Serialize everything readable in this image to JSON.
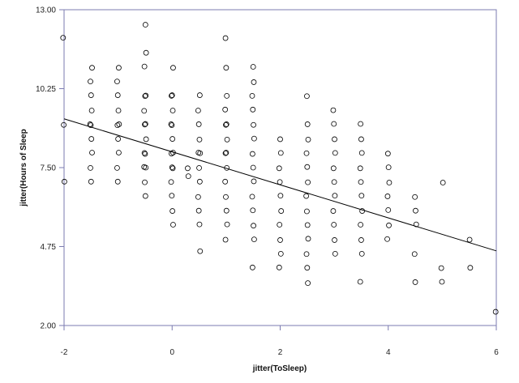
{
  "chart_data": {
    "type": "scatter",
    "title": "",
    "xlabel": "jitter(ToSleep)",
    "ylabel": "jitter(Hours of Sleep",
    "xlim": [
      -2,
      6
    ],
    "ylim": [
      2.0,
      13.0
    ],
    "x_ticks": [
      "-2",
      "0",
      "2",
      "4",
      "6"
    ],
    "y_ticks": [
      "2.00",
      "4.75",
      "7.50",
      "10.25",
      "13.00"
    ],
    "grid": false,
    "legend": "none",
    "colors": {
      "axis": "#7b7bb0",
      "marker": "#000000",
      "fit_line": "#000000"
    },
    "fit_line": {
      "x": [
        -2,
        6
      ],
      "y": [
        9.2,
        4.6
      ]
    },
    "points": [
      [
        -2.0,
        12.0
      ],
      [
        -2.0,
        9.0
      ],
      [
        -2.0,
        7.0
      ],
      [
        -1.5,
        11.0
      ],
      [
        -1.5,
        10.5
      ],
      [
        -1.5,
        10.0
      ],
      [
        -1.5,
        9.5
      ],
      [
        -1.5,
        9.0
      ],
      [
        -1.5,
        9.0
      ],
      [
        -1.5,
        8.5
      ],
      [
        -1.5,
        8.0
      ],
      [
        -1.5,
        7.5
      ],
      [
        -1.5,
        7.0
      ],
      [
        -1.0,
        11.0
      ],
      [
        -1.0,
        10.5
      ],
      [
        -1.0,
        10.0
      ],
      [
        -1.0,
        9.5
      ],
      [
        -1.0,
        9.0
      ],
      [
        -1.0,
        9.0
      ],
      [
        -1.0,
        8.5
      ],
      [
        -1.0,
        8.0
      ],
      [
        -1.0,
        7.5
      ],
      [
        -1.0,
        7.0
      ],
      [
        -0.5,
        12.5
      ],
      [
        -0.5,
        11.5
      ],
      [
        -0.5,
        11.0
      ],
      [
        -0.5,
        10.0
      ],
      [
        -0.5,
        10.0
      ],
      [
        -0.5,
        9.5
      ],
      [
        -0.5,
        9.0
      ],
      [
        -0.5,
        9.0
      ],
      [
        -0.5,
        8.5
      ],
      [
        -0.5,
        8.0
      ],
      [
        -0.5,
        8.0
      ],
      [
        -0.5,
        7.5
      ],
      [
        -0.5,
        7.5
      ],
      [
        -0.5,
        7.0
      ],
      [
        -0.5,
        6.5
      ],
      [
        0.0,
        11.0
      ],
      [
        0.0,
        10.0
      ],
      [
        0.0,
        10.0
      ],
      [
        0.0,
        9.5
      ],
      [
        0.0,
        9.0
      ],
      [
        0.0,
        9.0
      ],
      [
        0.0,
        8.5
      ],
      [
        0.0,
        8.0
      ],
      [
        0.0,
        8.0
      ],
      [
        0.0,
        7.5
      ],
      [
        0.0,
        7.5
      ],
      [
        0.0,
        7.0
      ],
      [
        0.0,
        6.5
      ],
      [
        0.0,
        6.0
      ],
      [
        0.0,
        5.5
      ],
      [
        0.3,
        7.5
      ],
      [
        0.3,
        7.2
      ],
      [
        0.5,
        10.0
      ],
      [
        0.5,
        9.5
      ],
      [
        0.5,
        9.0
      ],
      [
        0.5,
        8.5
      ],
      [
        0.5,
        8.0
      ],
      [
        0.5,
        8.0
      ],
      [
        0.5,
        7.5
      ],
      [
        0.5,
        7.0
      ],
      [
        0.5,
        6.5
      ],
      [
        0.5,
        6.0
      ],
      [
        0.5,
        5.5
      ],
      [
        0.5,
        4.6
      ],
      [
        1.0,
        12.0
      ],
      [
        1.0,
        11.0
      ],
      [
        1.0,
        10.0
      ],
      [
        1.0,
        9.5
      ],
      [
        1.0,
        9.0
      ],
      [
        1.0,
        9.0
      ],
      [
        1.0,
        8.5
      ],
      [
        1.0,
        8.0
      ],
      [
        1.0,
        8.0
      ],
      [
        1.0,
        7.5
      ],
      [
        1.0,
        7.0
      ],
      [
        1.0,
        6.5
      ],
      [
        1.0,
        6.0
      ],
      [
        1.0,
        5.5
      ],
      [
        1.0,
        5.0
      ],
      [
        1.5,
        11.0
      ],
      [
        1.5,
        10.5
      ],
      [
        1.5,
        10.0
      ],
      [
        1.5,
        9.5
      ],
      [
        1.5,
        9.0
      ],
      [
        1.5,
        8.5
      ],
      [
        1.5,
        8.0
      ],
      [
        1.5,
        7.5
      ],
      [
        1.5,
        7.0
      ],
      [
        1.5,
        6.5
      ],
      [
        1.5,
        6.0
      ],
      [
        1.5,
        5.5
      ],
      [
        1.5,
        5.0
      ],
      [
        1.5,
        4.0
      ],
      [
        2.0,
        8.5
      ],
      [
        2.0,
        8.0
      ],
      [
        2.0,
        7.5
      ],
      [
        2.0,
        7.0
      ],
      [
        2.0,
        6.5
      ],
      [
        2.0,
        6.0
      ],
      [
        2.0,
        5.5
      ],
      [
        2.0,
        5.0
      ],
      [
        2.0,
        4.5
      ],
      [
        2.0,
        4.0
      ],
      [
        2.5,
        10.0
      ],
      [
        2.5,
        9.0
      ],
      [
        2.5,
        8.5
      ],
      [
        2.5,
        8.0
      ],
      [
        2.5,
        7.5
      ],
      [
        2.5,
        7.0
      ],
      [
        2.5,
        6.5
      ],
      [
        2.5,
        6.0
      ],
      [
        2.5,
        5.5
      ],
      [
        2.5,
        5.0
      ],
      [
        2.5,
        4.5
      ],
      [
        2.5,
        4.0
      ],
      [
        2.5,
        3.5
      ],
      [
        3.0,
        9.5
      ],
      [
        3.0,
        9.0
      ],
      [
        3.0,
        8.5
      ],
      [
        3.0,
        8.0
      ],
      [
        3.0,
        7.5
      ],
      [
        3.0,
        7.0
      ],
      [
        3.0,
        6.5
      ],
      [
        3.0,
        6.0
      ],
      [
        3.0,
        5.5
      ],
      [
        3.0,
        5.0
      ],
      [
        3.0,
        4.5
      ],
      [
        3.5,
        9.0
      ],
      [
        3.5,
        8.5
      ],
      [
        3.5,
        8.0
      ],
      [
        3.5,
        7.5
      ],
      [
        3.5,
        7.0
      ],
      [
        3.5,
        6.5
      ],
      [
        3.5,
        6.0
      ],
      [
        3.5,
        5.5
      ],
      [
        3.5,
        5.0
      ],
      [
        3.5,
        4.5
      ],
      [
        3.5,
        3.5
      ],
      [
        4.0,
        8.0
      ],
      [
        4.0,
        7.5
      ],
      [
        4.0,
        7.0
      ],
      [
        4.0,
        6.5
      ],
      [
        4.0,
        6.0
      ],
      [
        4.0,
        5.5
      ],
      [
        4.0,
        5.0
      ],
      [
        4.5,
        6.5
      ],
      [
        4.5,
        6.0
      ],
      [
        4.5,
        5.5
      ],
      [
        4.5,
        4.5
      ],
      [
        4.5,
        3.5
      ],
      [
        5.0,
        7.0
      ],
      [
        5.0,
        4.0
      ],
      [
        5.0,
        3.5
      ],
      [
        5.5,
        5.0
      ],
      [
        5.5,
        4.0
      ],
      [
        6.0,
        2.5
      ]
    ]
  }
}
